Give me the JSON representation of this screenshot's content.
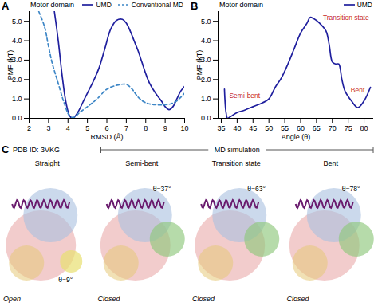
{
  "panel_labels": [
    "A",
    "B",
    "C"
  ],
  "chart_data": [
    {
      "type": "line",
      "title": "Motor domain",
      "x_label": "RMSD (Å)",
      "y_label": "PMF (kT)",
      "xlim": [
        2,
        10
      ],
      "xticks": [
        2,
        3,
        4,
        5,
        6,
        7,
        8,
        9,
        10
      ],
      "ylim": [
        0,
        5.5
      ],
      "yticks": [
        0,
        1,
        2,
        3,
        4,
        5
      ],
      "legend": "top-right",
      "series": [
        {
          "name": "UMD",
          "color": "#1f1f9e",
          "line_style": "solid",
          "x": [
            3.3,
            3.5,
            3.7,
            3.9,
            4.1,
            4.25,
            4.5,
            4.8,
            5.0,
            5.3,
            5.6,
            5.9,
            6.2,
            6.5,
            6.8,
            7.0,
            7.2,
            7.4,
            7.6,
            7.8,
            8.0,
            8.2,
            8.5,
            8.8,
            9.0,
            9.2,
            9.4,
            9.6,
            9.8,
            10.0
          ],
          "values": [
            5.5,
            4.0,
            2.2,
            0.8,
            0.1,
            0.0,
            0.3,
            0.9,
            1.3,
            1.9,
            2.6,
            3.6,
            4.6,
            5.05,
            5.1,
            4.9,
            4.5,
            4.0,
            3.5,
            2.9,
            2.3,
            1.8,
            1.3,
            0.9,
            0.6,
            0.45,
            0.6,
            1.0,
            1.4,
            1.65
          ]
        },
        {
          "name": "Conventional MD",
          "color": "#3d86c6",
          "line_style": "dashed",
          "x": [
            2.5,
            2.8,
            3.0,
            3.2,
            3.5,
            3.8,
            4.1,
            4.3,
            4.6,
            5.0,
            5.5,
            6.0,
            6.5,
            7.0,
            7.3,
            7.6,
            8.0,
            8.5,
            9.0,
            9.3,
            9.6,
            10.0
          ],
          "values": [
            5.5,
            4.7,
            3.7,
            2.8,
            1.8,
            0.8,
            0.1,
            0.05,
            0.3,
            0.6,
            1.0,
            1.5,
            1.7,
            1.75,
            1.5,
            1.1,
            0.8,
            0.7,
            0.7,
            0.75,
            0.9,
            1.3
          ]
        }
      ]
    },
    {
      "type": "line",
      "title": "Motor domain",
      "x_label": "Angle (θ)",
      "y_label": "PMF (kT)",
      "xlim": [
        34,
        83
      ],
      "xticks": [
        35,
        40,
        45,
        50,
        55,
        60,
        65,
        70,
        75,
        80
      ],
      "ylim": [
        0,
        5.5
      ],
      "yticks": [
        0,
        1,
        2,
        3,
        4,
        5
      ],
      "legend": "top-right",
      "series": [
        {
          "name": "UMD",
          "color": "#1f1f9e",
          "line_style": "solid",
          "x": [
            36,
            36.5,
            37,
            38,
            40,
            42,
            45,
            48,
            50,
            52,
            54,
            56,
            58,
            60,
            62,
            63,
            64,
            66,
            68,
            69,
            70,
            71,
            72,
            73,
            74,
            76,
            78,
            80,
            82
          ],
          "values": [
            1.5,
            0.3,
            0.0,
            0.1,
            0.3,
            0.4,
            0.6,
            0.8,
            1.0,
            1.6,
            2.1,
            2.8,
            3.6,
            4.4,
            4.9,
            5.2,
            5.15,
            4.9,
            4.5,
            3.8,
            2.9,
            2.8,
            2.8,
            2.0,
            1.4,
            0.9,
            0.55,
            0.9,
            1.6
          ]
        }
      ],
      "annotations": [
        {
          "text": "Semi-bent",
          "x": 37,
          "y": 0.0,
          "color": "#c62828"
        },
        {
          "text": "Transition state",
          "x": 63,
          "y": 5.2,
          "color": "#c62828"
        },
        {
          "text": "Bent",
          "x": 78,
          "y": 0.55,
          "color": "#c62828"
        }
      ]
    }
  ],
  "panel_c": {
    "header": {
      "left": "PDB ID: 3VKG",
      "bracket": "MD simulation"
    },
    "structures": [
      {
        "name": "Straight",
        "angle_label": "θ=9°",
        "state": "Open"
      },
      {
        "name": "Semi-bent",
        "angle_label": "θ=37°",
        "state": "Closed"
      },
      {
        "name": "Transition state",
        "angle_label": "θ=63°",
        "state": "Closed"
      },
      {
        "name": "Bent",
        "angle_label": "θ=78°",
        "state": "Closed"
      }
    ]
  }
}
